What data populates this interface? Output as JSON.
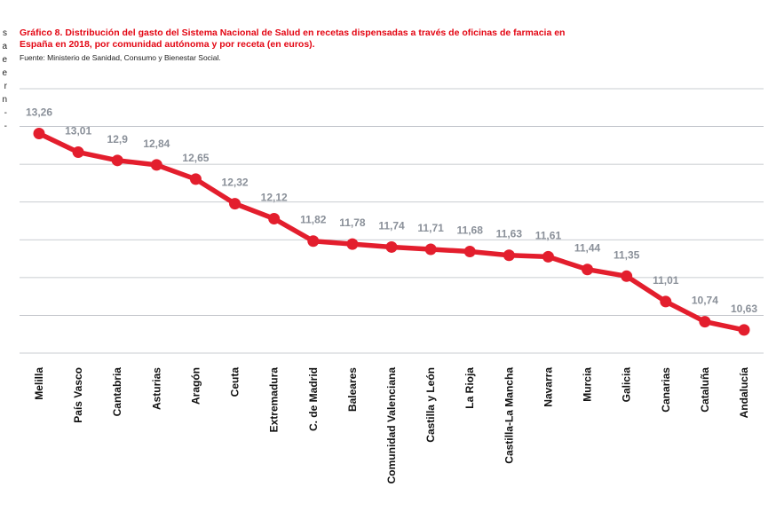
{
  "edge_text": [
    "s",
    "a",
    "e",
    "e",
    "r",
    "n",
    "-",
    "-"
  ],
  "chart_data": {
    "type": "line",
    "title": "Gráfico 8. Distribución del gasto del Sistema Nacional de Salud en recetas dispensadas a través de oficinas de farmacia en España en 2018, por comunidad autónoma y por receta (en euros).",
    "source": "Fuente: Ministerio de Sanidad, Consumo y Bienestar Social.",
    "categories": [
      "Melilla",
      "País Vasco",
      "Cantabria",
      "Asturias",
      "Aragón",
      "Ceuta",
      "Extremadura",
      "C. de Madrid",
      "Baleares",
      "Comunidad Valenciana",
      "Castilla y León",
      "La Rioja",
      "Castilla-La Mancha",
      "Navarra",
      "Murcia",
      "Galicia",
      "Canarias",
      "Cataluña",
      "Andalucía"
    ],
    "values": [
      13.26,
      13.01,
      12.9,
      12.84,
      12.65,
      12.32,
      12.12,
      11.82,
      11.78,
      11.74,
      11.71,
      11.68,
      11.63,
      11.61,
      11.44,
      11.35,
      11.01,
      10.74,
      10.63
    ],
    "value_labels": [
      "13,26",
      "13,01",
      "12,9",
      "12,84",
      "12,65",
      "12,32",
      "12,12",
      "11,82",
      "11,78",
      "11,74",
      "11,71",
      "11,68",
      "11,63",
      "11,61",
      "11,44",
      "11,35",
      "11,01",
      "10,74",
      "10,63"
    ],
    "ylim": [
      10.32,
      13.86
    ],
    "gridlines": 8,
    "line_color": "#e31e2d",
    "label_color": "#8a9099",
    "xlabel": "",
    "ylabel": ""
  }
}
